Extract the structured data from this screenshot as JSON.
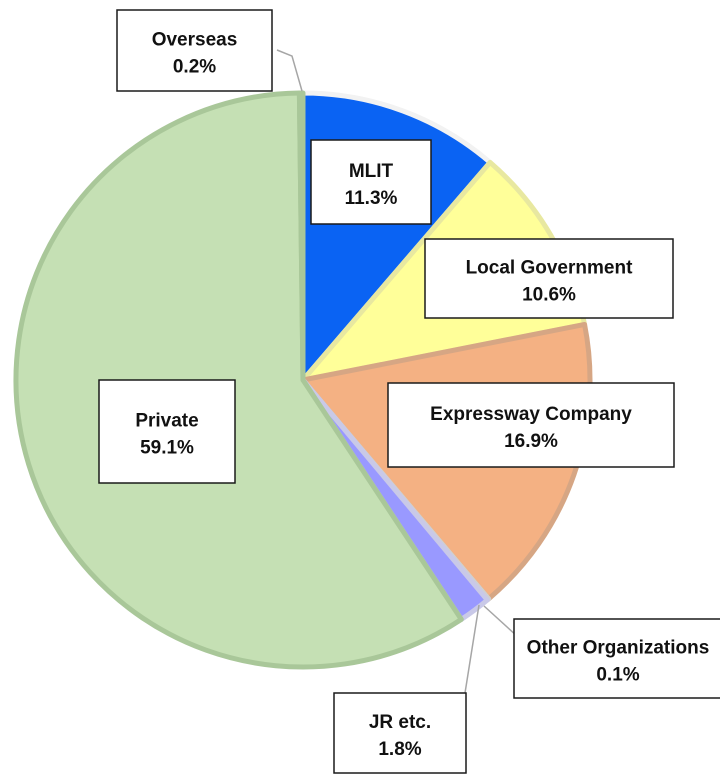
{
  "chart_data": {
    "type": "pie",
    "title": "",
    "start_angle_deg": 0,
    "direction": "clockwise",
    "slices": [
      {
        "label": "MLIT",
        "value": 11.3,
        "value_label": "11.3%",
        "color": "#0a63f3",
        "border": "#f2f2f2"
      },
      {
        "label": "Local Government",
        "value": 10.6,
        "value_label": "10.6%",
        "color": "#ffff99",
        "border": "#e8e8a0"
      },
      {
        "label": "Expressway Company",
        "value": 16.9,
        "value_label": "16.9%",
        "color": "#f4b183",
        "border": "#d6a684"
      },
      {
        "label": "Other Organizations",
        "value": 0.1,
        "value_label": "0.1%",
        "color": "#4472c4",
        "border": "#d0d0d0"
      },
      {
        "label": "JR etc.",
        "value": 1.8,
        "value_label": "1.8%",
        "color": "#9999ff",
        "border": "#c9c9e8"
      },
      {
        "label": "Private",
        "value": 59.1,
        "value_label": "59.1%",
        "color": "#c5e0b4",
        "border": "#a9c799"
      },
      {
        "label": "Overseas",
        "value": 0.2,
        "value_label": "0.2%",
        "color": "#a9d18e",
        "border": "#a9c799"
      }
    ]
  }
}
